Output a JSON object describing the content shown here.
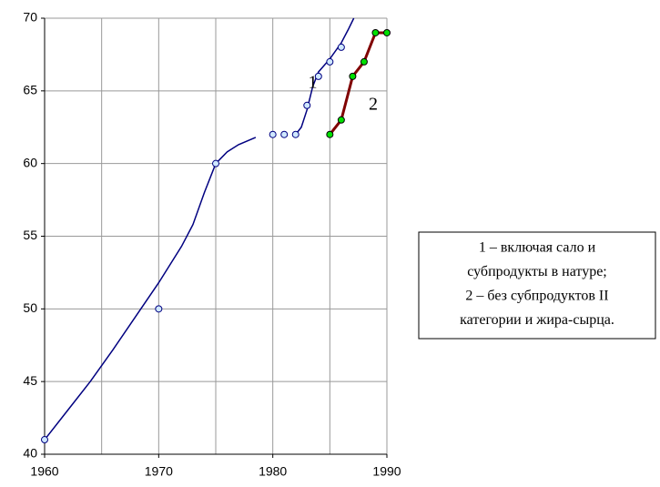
{
  "chart_data": {
    "type": "line",
    "xlim": [
      1960,
      1990
    ],
    "ylim": [
      40,
      70
    ],
    "xticks": [
      1960,
      1970,
      1980,
      1990
    ],
    "x_grid": [
      1960,
      1965,
      1970,
      1975,
      1980,
      1985,
      1990
    ],
    "yticks": [
      40,
      45,
      50,
      55,
      60,
      65,
      70
    ],
    "grid": true,
    "series": [
      {
        "name": "1",
        "color": "#000080",
        "marker_color": "#cfe8ff",
        "x": [
          1960,
          1970,
          1975,
          1980,
          1981,
          1982,
          1983,
          1984,
          1985,
          1986
        ],
        "values": [
          41,
          50,
          60,
          62,
          62,
          62,
          64,
          66,
          67,
          68
        ],
        "curve": {
          "x": [
            1960,
            1962,
            1964,
            1966,
            1968,
            1970,
            1972,
            1973,
            1974,
            1975,
            1976,
            1977,
            1978.5,
            null,
            1982,
            1982.5,
            1983,
            1983.5,
            1984,
            1985,
            1986,
            1986.6,
            1987.1
          ],
          "values": [
            41,
            43,
            45,
            47.2,
            49.5,
            51.8,
            54.3,
            55.8,
            58,
            60,
            60.8,
            61.3,
            61.8,
            null,
            62,
            62.5,
            63.7,
            65.3,
            66.3,
            67.2,
            68.3,
            69.2,
            70
          ]
        },
        "label_at": [
          1983.5,
          65.5
        ]
      },
      {
        "name": "2",
        "color": "#800000",
        "marker_color": "#00e000",
        "x": [
          1985,
          1986,
          1987,
          1988,
          1989,
          1990
        ],
        "values": [
          62,
          63,
          66,
          67,
          69,
          69
        ],
        "label_at": [
          1988.8,
          64
        ]
      }
    ],
    "legend": [
      "1 – включая сало и",
      "субпродукты в натуре;",
      "2 – без субпродуктов II",
      "категории и жира-сырца."
    ]
  }
}
